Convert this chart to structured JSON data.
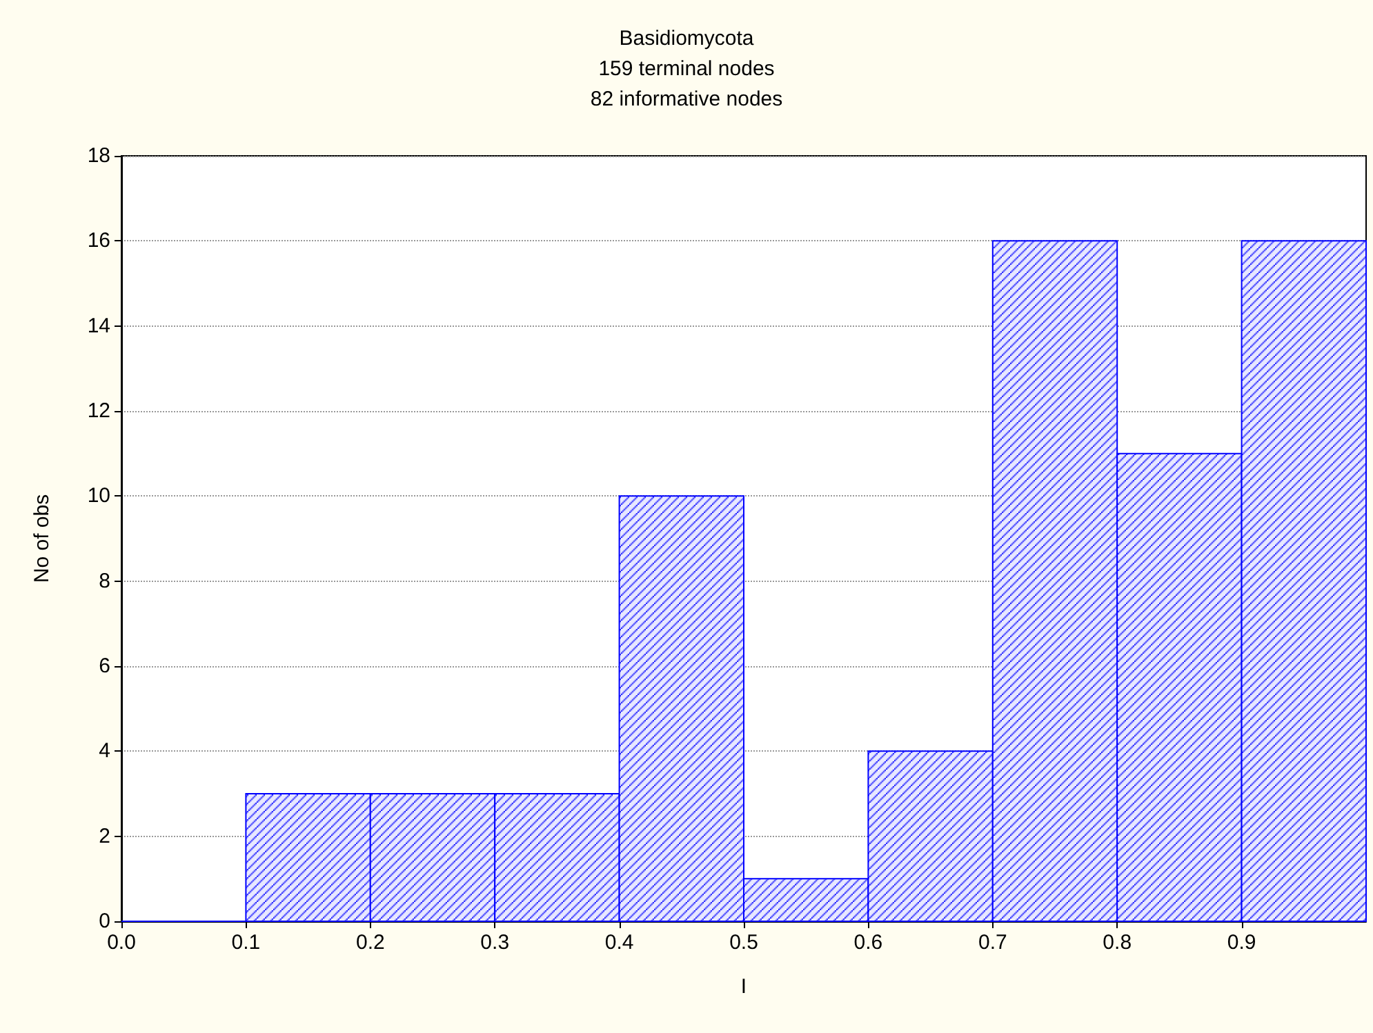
{
  "chart_data": {
    "type": "histogram",
    "title": "Basidiomycota",
    "subtitle": "159 terminal nodes\n82 informative nodes",
    "xlabel": "I",
    "ylabel": "No of obs",
    "bins": [
      0.0,
      0.1,
      0.2,
      0.3,
      0.4,
      0.5,
      0.6,
      0.7,
      0.8,
      0.9,
      1.0
    ],
    "values": [
      0,
      3,
      3,
      3,
      10,
      1,
      4,
      16,
      11,
      16
    ],
    "color": "#0000ff",
    "xlim": [
      0,
      1
    ],
    "xticks": [
      {
        "value": 0,
        "label": "0.0"
      },
      {
        "value": 0.1,
        "label": "0.1"
      },
      {
        "value": 0.2,
        "label": "0.2"
      },
      {
        "value": 0.3,
        "label": "0.3"
      },
      {
        "value": 0.4,
        "label": "0.4"
      },
      {
        "value": 0.5,
        "label": "0.5"
      },
      {
        "value": 0.6,
        "label": "0.6"
      },
      {
        "value": 0.7,
        "label": "0.7"
      },
      {
        "value": 0.8,
        "label": "0.8"
      },
      {
        "value": 0.9,
        "label": "0.9"
      }
    ],
    "ylim": [
      0,
      18
    ],
    "yticks": [
      0,
      2,
      4,
      6,
      8,
      10,
      12,
      14,
      16,
      18
    ],
    "grid": "y"
  }
}
